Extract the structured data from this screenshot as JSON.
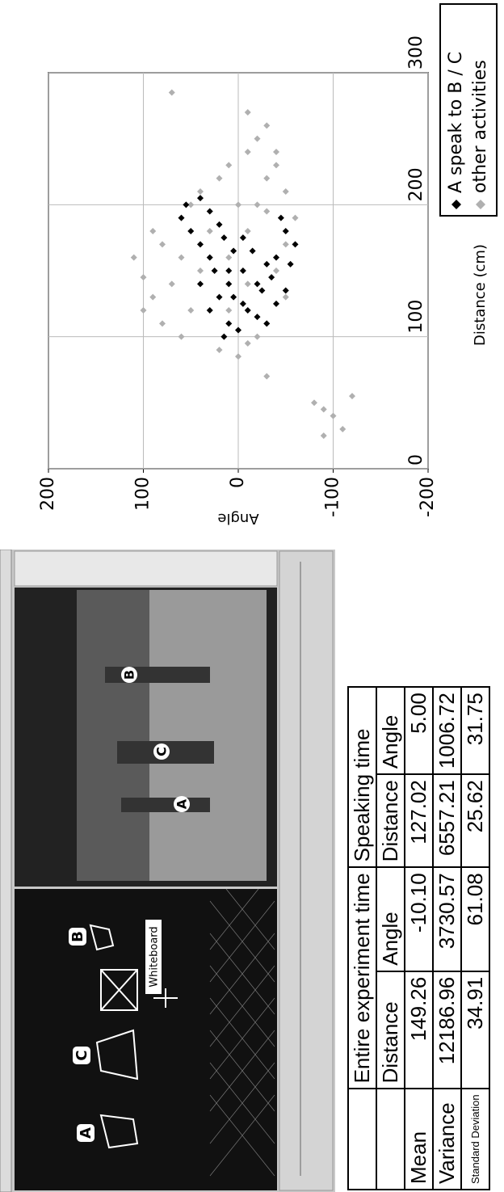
{
  "screenshot": {
    "view_labels": [
      "A",
      "C",
      "B",
      "Whiteboard"
    ],
    "video_labels": [
      "A",
      "C",
      "B"
    ]
  },
  "table": {
    "header": [
      "Entire experiment time",
      "Speaking time"
    ],
    "subheader": [
      "Distance",
      "Angle",
      "Distance",
      "Angle"
    ],
    "rows": [
      [
        "Mean",
        "149.26",
        "-10.10",
        "127.02",
        "5.00"
      ],
      [
        "Variance",
        "12186.96",
        "3730.57",
        "6557.21",
        "1006.72"
      ],
      [
        "Standard Deviation",
        "34.91",
        "61.08",
        "25.62",
        "31.75"
      ]
    ]
  },
  "chart_data": {
    "type": "scatter",
    "xlabel": "Distance (cm)",
    "ylabel": "Angle",
    "xlim": [
      0,
      300
    ],
    "xticks": [
      0,
      100,
      200,
      300
    ],
    "ylim": [
      -200,
      200
    ],
    "yticks": [
      200,
      100,
      0,
      -100,
      -200
    ],
    "grid": true,
    "legend": "lower right",
    "series": [
      {
        "name": "other activities",
        "color": "#b0b0b0",
        "x": [
          90,
          100,
          110,
          120,
          130,
          140,
          150,
          160,
          170,
          180,
          190,
          200,
          210,
          220,
          230,
          240,
          250,
          230,
          210,
          190,
          170,
          150,
          130,
          110,
          95,
          85,
          100,
          120,
          140,
          160,
          180,
          200,
          220,
          240,
          180,
          160,
          120,
          145,
          195,
          260,
          270,
          285,
          50,
          40,
          30,
          55,
          25,
          45,
          70,
          200
        ],
        "values": [
          20,
          60,
          80,
          50,
          90,
          70,
          40,
          60,
          80,
          30,
          60,
          50,
          40,
          20,
          10,
          -10,
          -20,
          -40,
          -50,
          -60,
          -50,
          -40,
          -50,
          -30,
          -10,
          0,
          -20,
          10,
          -10,
          10,
          -10,
          -20,
          -30,
          -40,
          90,
          110,
          100,
          100,
          -30,
          -30,
          -10,
          70,
          -80,
          -100,
          -110,
          -120,
          -90,
          -90,
          -30,
          0
        ]
      },
      {
        "name": "A speak to B / C",
        "color": "#000000",
        "x": [
          110,
          120,
          130,
          140,
          150,
          160,
          170,
          180,
          190,
          200,
          195,
          185,
          175,
          165,
          155,
          145,
          135,
          125,
          115,
          105,
          120,
          140,
          150,
          160,
          170,
          180,
          190,
          130,
          140,
          110,
          100,
          150,
          165,
          205,
          175,
          125,
          135,
          155
        ],
        "values": [
          10,
          -10,
          20,
          -20,
          10,
          30,
          40,
          50,
          60,
          55,
          30,
          20,
          -5,
          -15,
          -30,
          -35,
          -25,
          -40,
          -20,
          0,
          30,
          40,
          -5,
          -40,
          -60,
          -50,
          -45,
          5,
          10,
          -30,
          15,
          25,
          5,
          40,
          15,
          -5,
          -50,
          -55
        ]
      }
    ]
  }
}
